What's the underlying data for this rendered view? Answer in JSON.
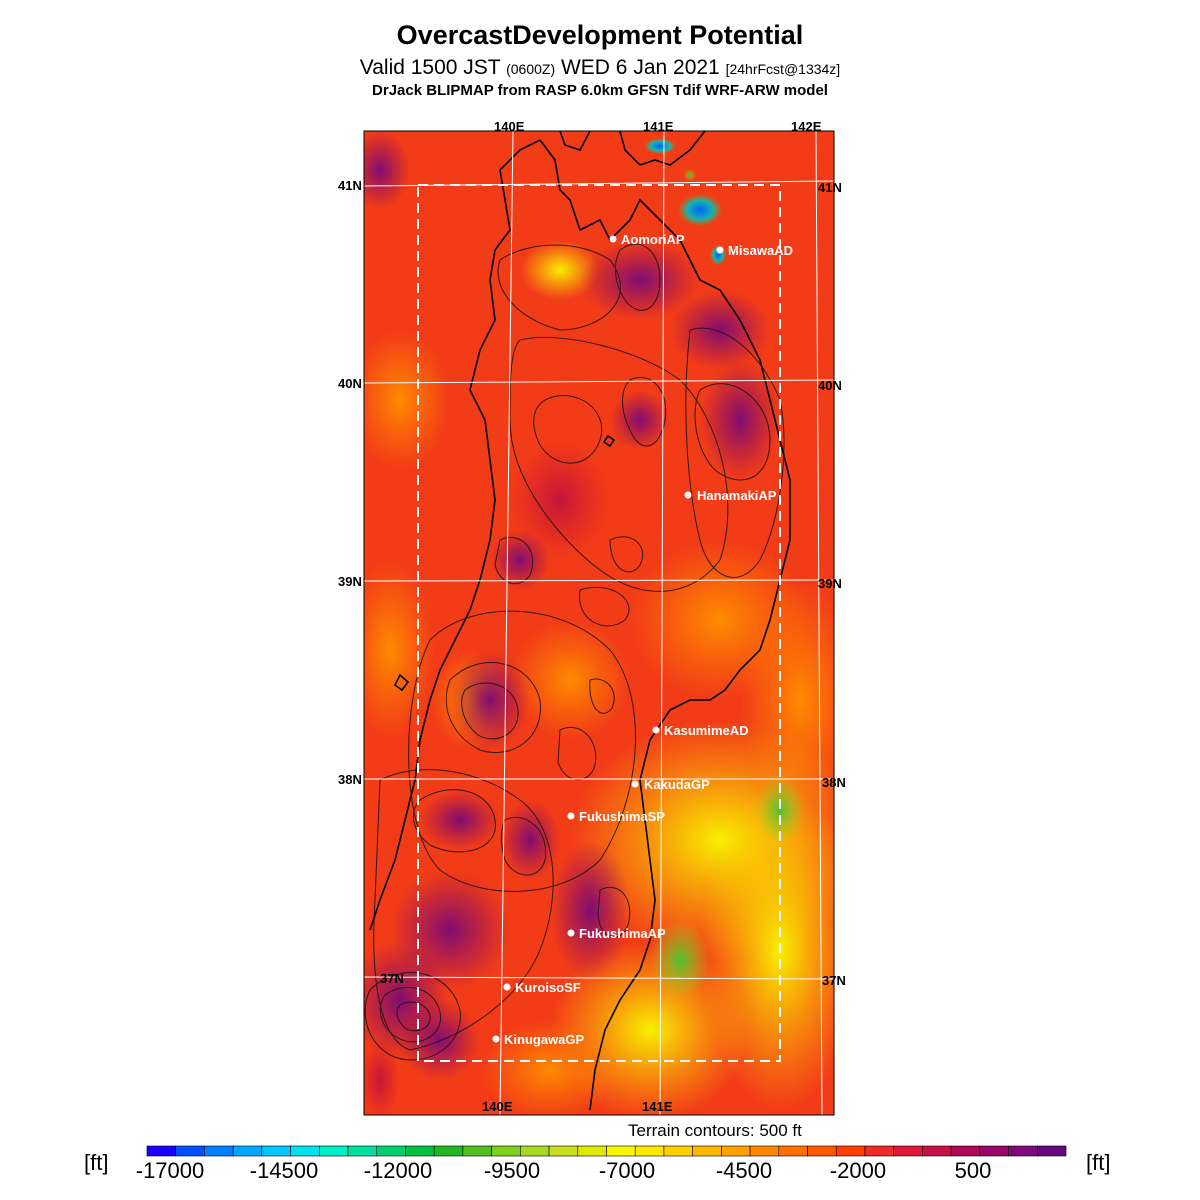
{
  "header": {
    "title": "OvercastDevelopment Potential",
    "valid_main": "Valid 1500 JST",
    "valid_utc": "(0600Z)",
    "valid_date": "WED 6 Jan 2021",
    "forecast": "[24hrFcst@1334z]",
    "model": "DrJack BLIPMAP from RASP 6.0km GFSN Tdif WRF-ARW model"
  },
  "map": {
    "lon_labels_top": [
      "140E",
      "141E",
      "142E"
    ],
    "lon_labels_bottom": [
      "140E",
      "141E"
    ],
    "lat_labels_left": [
      "41N",
      "40N",
      "39N",
      "38N",
      "37N"
    ],
    "lat_labels_right": [
      "41N",
      "40N",
      "39N",
      "38N",
      "37N"
    ],
    "stations": [
      {
        "name": "AomoriAP"
      },
      {
        "name": "MisawaAD"
      },
      {
        "name": "HanamakiAP"
      },
      {
        "name": "KasumimeAD"
      },
      {
        "name": "KakudaGP"
      },
      {
        "name": "FukushimaSP"
      },
      {
        "name": "FukushimaAP"
      },
      {
        "name": "KuroisoSF"
      },
      {
        "name": "KinugawaGP"
      }
    ],
    "colors": {
      "grid": "#ffffff",
      "coast": "#000000",
      "domain_box": "#ffffff"
    }
  },
  "footer": {
    "terrain_note": "Terrain contours: 500 ft",
    "unit_left": "[ft]",
    "unit_right": "[ft]",
    "colorbar_labels": [
      "-17000",
      "-14500",
      "-12000",
      "-9500",
      "-7000",
      "-4500",
      "-2000",
      "500"
    ],
    "colorbar_colors": [
      "#1a00ff",
      "#0050ff",
      "#0080ff",
      "#00a8ff",
      "#00c8ff",
      "#00e0f0",
      "#00f0c8",
      "#00e0a0",
      "#00d070",
      "#00c040",
      "#20b820",
      "#50c020",
      "#80d020",
      "#a8d820",
      "#c8e020",
      "#e0e800",
      "#f8f800",
      "#ffe800",
      "#ffd000",
      "#ffb800",
      "#ffa000",
      "#ff8800",
      "#ff7000",
      "#ff5800",
      "#ff4000",
      "#f02828",
      "#e01838",
      "#c81048",
      "#b00858",
      "#980868",
      "#800878",
      "#680880"
    ]
  }
}
